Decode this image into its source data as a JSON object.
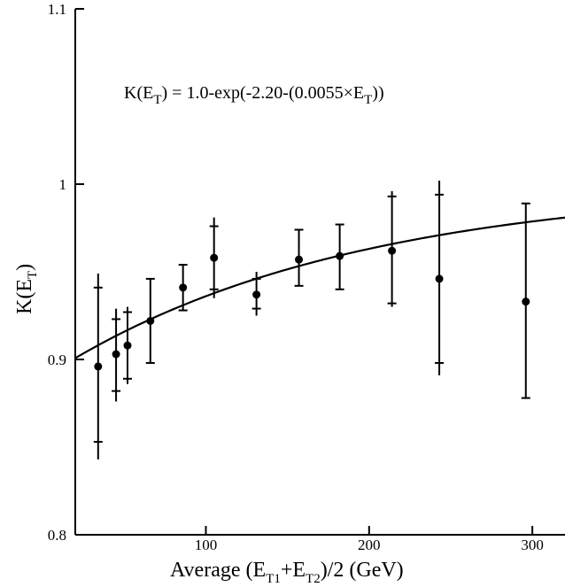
{
  "chart_data": {
    "type": "scatter",
    "title": "",
    "xlabel": {
      "prefix": "Average (E",
      "sub1": "T1",
      "mid": "+E",
      "sub2": "T2",
      "suffix": ")/2 (GeV)"
    },
    "ylabel": {
      "prefix": "K(E",
      "sub": "T",
      "suffix": ")"
    },
    "annotation": {
      "p1": "K(E",
      "s1": "T",
      "p2": ") = 1.0-exp(-2.20-(0.0055×E",
      "s2": "T",
      "p3": "))"
    },
    "xlim": [
      20,
      320
    ],
    "ylim": [
      0.8,
      1.1
    ],
    "x_ticks": [
      {
        "value": 100,
        "label": "100"
      },
      {
        "value": 200,
        "label": "200"
      },
      {
        "value": 300,
        "label": "300"
      }
    ],
    "y_ticks": [
      {
        "value": 0.8,
        "label": "0.8"
      },
      {
        "value": 0.9,
        "label": "0.9"
      },
      {
        "value": 1.0,
        "label": "1"
      },
      {
        "value": 1.1,
        "label": "1.1"
      }
    ],
    "grid": false,
    "fit": {
      "a": 2.2,
      "b": 0.0055,
      "x_range": [
        20,
        320
      ]
    },
    "points": [
      {
        "x": 34,
        "y": 0.896,
        "stat": [
          0.853,
          0.941
        ],
        "total": [
          0.843,
          0.949
        ]
      },
      {
        "x": 45,
        "y": 0.903,
        "stat": [
          0.882,
          0.923
        ],
        "total": [
          0.876,
          0.929
        ]
      },
      {
        "x": 52,
        "y": 0.908,
        "stat": [
          0.889,
          0.927
        ],
        "total": [
          0.886,
          0.93
        ]
      },
      {
        "x": 66,
        "y": 0.922,
        "stat": [
          0.898,
          0.946
        ],
        "total": [
          0.898,
          0.946
        ]
      },
      {
        "x": 86,
        "y": 0.941,
        "stat": [
          0.928,
          0.954
        ],
        "total": [
          0.928,
          0.954
        ]
      },
      {
        "x": 105,
        "y": 0.958,
        "stat": [
          0.94,
          0.976
        ],
        "total": [
          0.935,
          0.981
        ]
      },
      {
        "x": 131,
        "y": 0.937,
        "stat": [
          0.929,
          0.946
        ],
        "total": [
          0.925,
          0.95
        ]
      },
      {
        "x": 157,
        "y": 0.957,
        "stat": [
          0.942,
          0.974
        ],
        "total": [
          0.942,
          0.974
        ]
      },
      {
        "x": 182,
        "y": 0.959,
        "stat": [
          0.94,
          0.977
        ],
        "total": [
          0.94,
          0.977
        ]
      },
      {
        "x": 214,
        "y": 0.962,
        "stat": [
          0.932,
          0.993
        ],
        "total": [
          0.93,
          0.996
        ]
      },
      {
        "x": 243,
        "y": 0.946,
        "stat": [
          0.898,
          0.994
        ],
        "total": [
          0.891,
          1.002
        ]
      },
      {
        "x": 296,
        "y": 0.933,
        "stat": [
          0.878,
          0.989
        ],
        "total": [
          0.878,
          0.989
        ]
      }
    ]
  }
}
